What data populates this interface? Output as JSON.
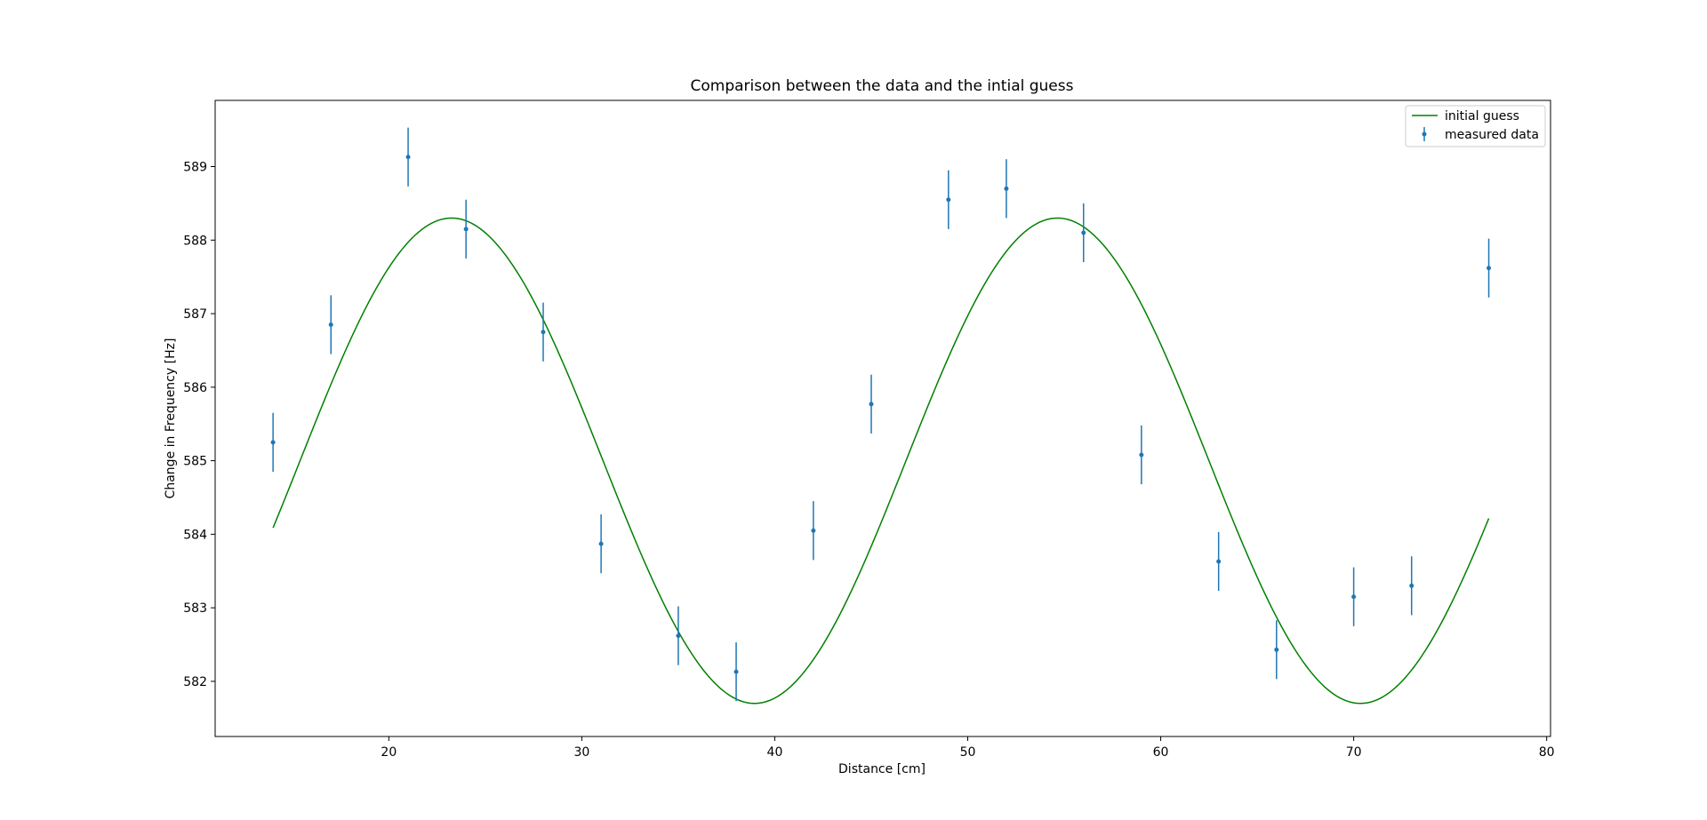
{
  "chart_data": {
    "type": "scatter",
    "title": "Comparison between the data and the intial guess",
    "xlabel": "Distance [cm]",
    "ylabel": "Change in Frequency [Hz]",
    "xlim": [
      11,
      80.2
    ],
    "ylim": [
      581.25,
      589.9
    ],
    "xticks": [
      "20",
      "30",
      "40",
      "50",
      "60",
      "70",
      "80"
    ],
    "xtick_values": [
      20,
      30,
      40,
      50,
      60,
      70,
      80
    ],
    "yticks": [
      "582",
      "583",
      "584",
      "585",
      "586",
      "587",
      "588",
      "589"
    ],
    "ytick_values": [
      582,
      583,
      584,
      585,
      586,
      587,
      588,
      589
    ],
    "grid": false,
    "legend_position": "top-right",
    "series": [
      {
        "name": "initial guess",
        "kind": "line",
        "color": "#008000",
        "x_range": [
          14,
          77
        ],
        "model": "sine",
        "offset": 585.0,
        "amplitude": 3.3,
        "period": 31.4,
        "peak_x": 23.25
      },
      {
        "name": "measured data",
        "kind": "errorbar",
        "color": "#1f77b4",
        "error": 0.4,
        "x": [
          14,
          17,
          21,
          24,
          28,
          31,
          35,
          38,
          42,
          45,
          49,
          52,
          56,
          59,
          63,
          66,
          70,
          73,
          77
        ],
        "y": [
          585.25,
          586.85,
          589.13,
          588.15,
          586.75,
          583.87,
          582.62,
          582.13,
          584.05,
          585.77,
          588.55,
          588.7,
          588.1,
          585.08,
          583.63,
          582.43,
          583.15,
          583.3,
          587.62
        ]
      }
    ]
  }
}
